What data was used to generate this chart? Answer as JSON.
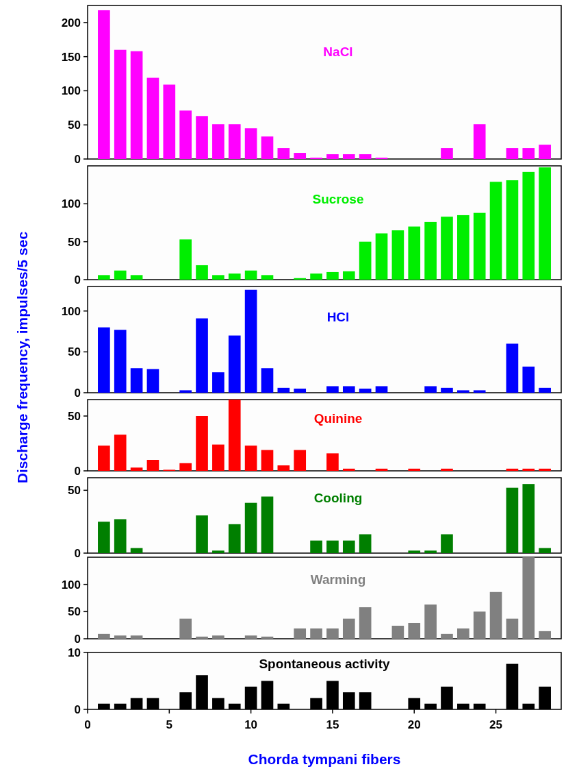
{
  "chart_data": [
    {
      "type": "bar",
      "title": "NaCl",
      "x": [
        1,
        2,
        3,
        4,
        5,
        6,
        7,
        8,
        9,
        10,
        11,
        12,
        13,
        14,
        15,
        16,
        17,
        18,
        19,
        20,
        21,
        22,
        23,
        24,
        25,
        26,
        27,
        28
      ],
      "xlim": [
        0,
        29
      ],
      "ylim": [
        0,
        225
      ],
      "yticks": [
        0,
        50,
        100,
        150,
        200
      ],
      "tick_labels": "y",
      "series": [
        {
          "color": "#ff00ff",
          "values": [
            218,
            160,
            158,
            119,
            109,
            71,
            63,
            51,
            51,
            45,
            33,
            16,
            9,
            2,
            7,
            7,
            7,
            2,
            0,
            0,
            0,
            16,
            0,
            51,
            0,
            16,
            16,
            21
          ]
        }
      ]
    },
    {
      "type": "bar",
      "title": "Sucrose",
      "x": [
        1,
        2,
        3,
        4,
        5,
        6,
        7,
        8,
        9,
        10,
        11,
        12,
        13,
        14,
        15,
        16,
        17,
        18,
        19,
        20,
        21,
        22,
        23,
        24,
        25,
        26,
        27,
        28
      ],
      "xlim": [
        0,
        29
      ],
      "ylim": [
        0,
        150
      ],
      "yticks": [
        0,
        50,
        100
      ],
      "tick_labels": "y",
      "series": [
        {
          "color": "#00ee00",
          "values": [
            6,
            12,
            6,
            0,
            0,
            53,
            19,
            6,
            8,
            12,
            6,
            0,
            2,
            8,
            10,
            11,
            50,
            61,
            65,
            70,
            76,
            83,
            85,
            88,
            129,
            131,
            142,
            148
          ]
        }
      ]
    },
    {
      "type": "bar",
      "title": "HCl",
      "x": [
        1,
        2,
        3,
        4,
        5,
        6,
        7,
        8,
        9,
        10,
        11,
        12,
        13,
        14,
        15,
        16,
        17,
        18,
        19,
        20,
        21,
        22,
        23,
        24,
        25,
        26,
        27,
        28
      ],
      "xlim": [
        0,
        29
      ],
      "ylim": [
        0,
        130
      ],
      "yticks": [
        0,
        50,
        100
      ],
      "tick_labels": "y",
      "series": [
        {
          "color": "#0000ff",
          "values": [
            80,
            77,
            30,
            29,
            0,
            3,
            91,
            25,
            70,
            126,
            30,
            6,
            5,
            0,
            8,
            8,
            5,
            8,
            0,
            0,
            8,
            6,
            3,
            3,
            0,
            60,
            32,
            6
          ]
        }
      ]
    },
    {
      "type": "bar",
      "title": "Quinine",
      "ylabel": "Discharge frequency, impulses/5 sec",
      "x": [
        1,
        2,
        3,
        4,
        5,
        6,
        7,
        8,
        9,
        10,
        11,
        12,
        13,
        14,
        15,
        16,
        17,
        18,
        19,
        20,
        21,
        22,
        23,
        24,
        25,
        26,
        27,
        28
      ],
      "xlim": [
        0,
        29
      ],
      "ylim": [
        0,
        65
      ],
      "yticks": [
        0,
        50
      ],
      "tick_labels": "y",
      "series": [
        {
          "color": "#ff0000",
          "values": [
            23,
            33,
            3,
            10,
            1,
            7,
            50,
            24,
            65,
            23,
            19,
            5,
            19,
            0,
            16,
            2,
            0,
            2,
            0,
            2,
            0,
            2,
            0,
            0,
            0,
            2,
            2,
            2
          ]
        }
      ]
    },
    {
      "type": "bar",
      "title": "Cooling",
      "x": [
        1,
        2,
        3,
        4,
        5,
        6,
        7,
        8,
        9,
        10,
        11,
        12,
        13,
        14,
        15,
        16,
        17,
        18,
        19,
        20,
        21,
        22,
        23,
        24,
        25,
        26,
        27,
        28
      ],
      "xlim": [
        0,
        29
      ],
      "ylim": [
        0,
        60
      ],
      "yticks": [
        0,
        50
      ],
      "tick_labels": "y",
      "series": [
        {
          "color": "#007f00",
          "values": [
            25,
            27,
            4,
            0,
            0,
            0,
            30,
            2,
            23,
            40,
            45,
            0,
            0,
            10,
            10,
            10,
            15,
            0,
            0,
            2,
            2,
            15,
            0,
            0,
            0,
            52,
            55,
            4
          ]
        }
      ]
    },
    {
      "type": "bar",
      "title": "Warming",
      "x": [
        1,
        2,
        3,
        4,
        5,
        6,
        7,
        8,
        9,
        10,
        11,
        12,
        13,
        14,
        15,
        16,
        17,
        18,
        19,
        20,
        21,
        22,
        23,
        24,
        25,
        26,
        27,
        28
      ],
      "xlim": [
        0,
        29
      ],
      "ylim": [
        0,
        150
      ],
      "yticks": [
        0,
        50,
        100
      ],
      "tick_labels": "y",
      "series": [
        {
          "color": "#808080",
          "values": [
            9,
            6,
            6,
            0,
            0,
            37,
            4,
            6,
            0,
            6,
            4,
            0,
            19,
            19,
            19,
            37,
            58,
            0,
            24,
            29,
            63,
            9,
            19,
            50,
            86,
            37,
            150,
            14
          ]
        }
      ]
    },
    {
      "type": "bar",
      "title": "Spontaneous activity",
      "xlabel": "Chorda tympani fibers",
      "x": [
        1,
        2,
        3,
        4,
        5,
        6,
        7,
        8,
        9,
        10,
        11,
        12,
        13,
        14,
        15,
        16,
        17,
        18,
        19,
        20,
        21,
        22,
        23,
        24,
        25,
        26,
        27,
        28
      ],
      "xlim": [
        0,
        29
      ],
      "xticks": [
        0,
        5,
        10,
        15,
        20,
        25
      ],
      "ylim": [
        0,
        10
      ],
      "yticks": [
        0,
        10
      ],
      "series": [
        {
          "color": "#000000",
          "values": [
            1,
            1,
            2,
            2,
            0,
            3,
            6,
            2,
            1,
            4,
            5,
            1,
            0,
            2,
            5,
            3,
            3,
            0,
            0,
            2,
            1,
            4,
            1,
            1,
            0,
            8,
            1,
            4
          ]
        }
      ]
    }
  ]
}
